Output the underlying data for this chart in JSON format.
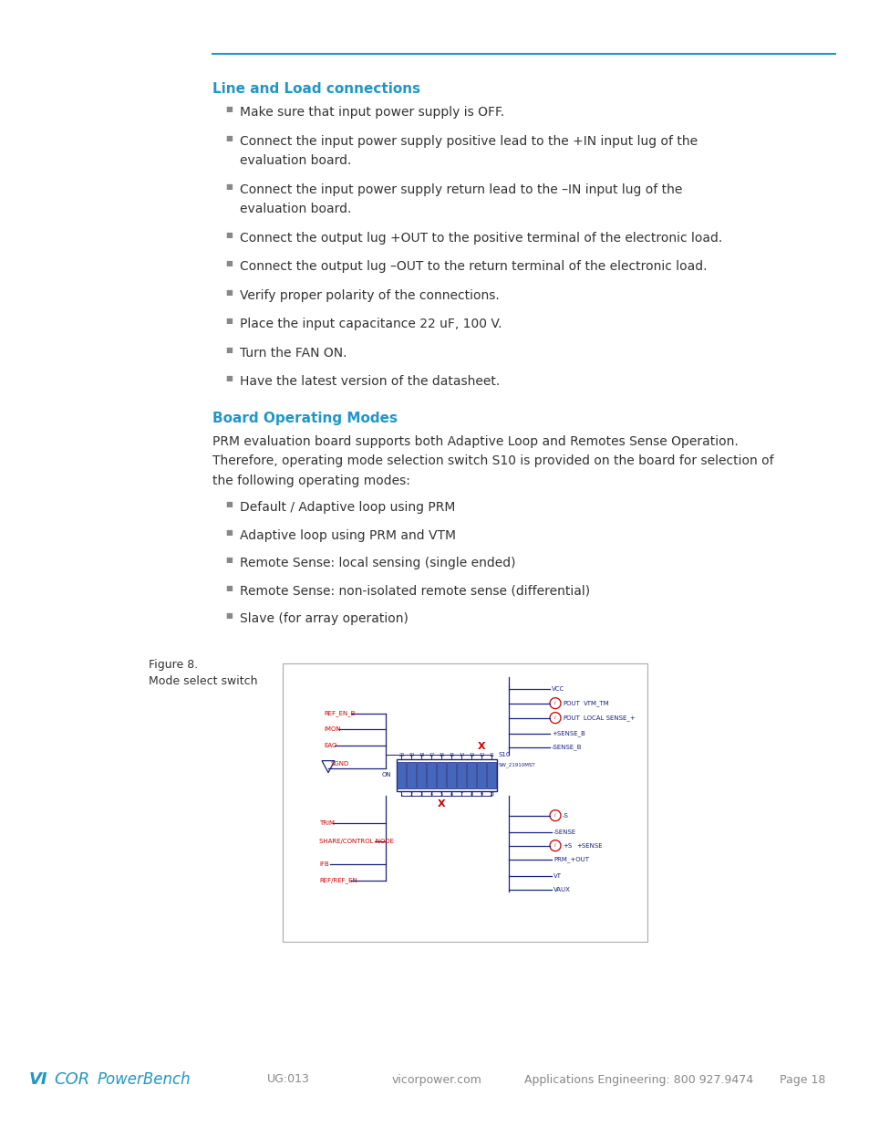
{
  "page_bg": "#ffffff",
  "top_line_color": "#2196c8",
  "heading1": "Line and Load connections",
  "heading1_color": "#2196c8",
  "heading2": "Board Operating Modes",
  "heading2_color": "#2196c8",
  "bullet_color": "#888888",
  "text_color": "#333333",
  "bullets1": [
    "Make sure that input power supply is OFF.",
    "Connect the input power supply positive lead to the +IN input lug of the\nevaluation board.",
    "Connect the input power supply return lead to the –IN input lug of the\nevaluation board.",
    "Connect the output lug +OUT to the positive terminal of the electronic load.",
    "Connect the output lug –OUT to the return terminal of the electronic load.",
    "Verify proper polarity of the connections.",
    "Place the input capacitance 22 uF, 100 V.",
    "Turn the FAN ON.",
    "Have the latest version of the datasheet."
  ],
  "para1_lines": [
    "PRM evaluation board supports both Adaptive Loop and Remotes Sense Operation.",
    "Therefore, operating mode selection switch S10 is provided on the board for selection of",
    "the following operating modes:"
  ],
  "bullets2": [
    "Default / Adaptive loop using PRM",
    "Adaptive loop using PRM and VTM",
    "Remote Sense: local sensing (single ended)",
    "Remote Sense: non-isolated remote sense (differential)",
    "Slave (for array operation)"
  ],
  "fig_label": "Figure 8.",
  "fig_caption": "Mode select switch",
  "footer_color": "#888888",
  "footer_blue": "#2196c8",
  "footer_items": [
    "UG:013",
    "vicorpower.com",
    "Applications Engineering: 800 927.9474",
    "Page 18"
  ],
  "dark_blue": "#1a237e",
  "red_color": "#cc0000"
}
